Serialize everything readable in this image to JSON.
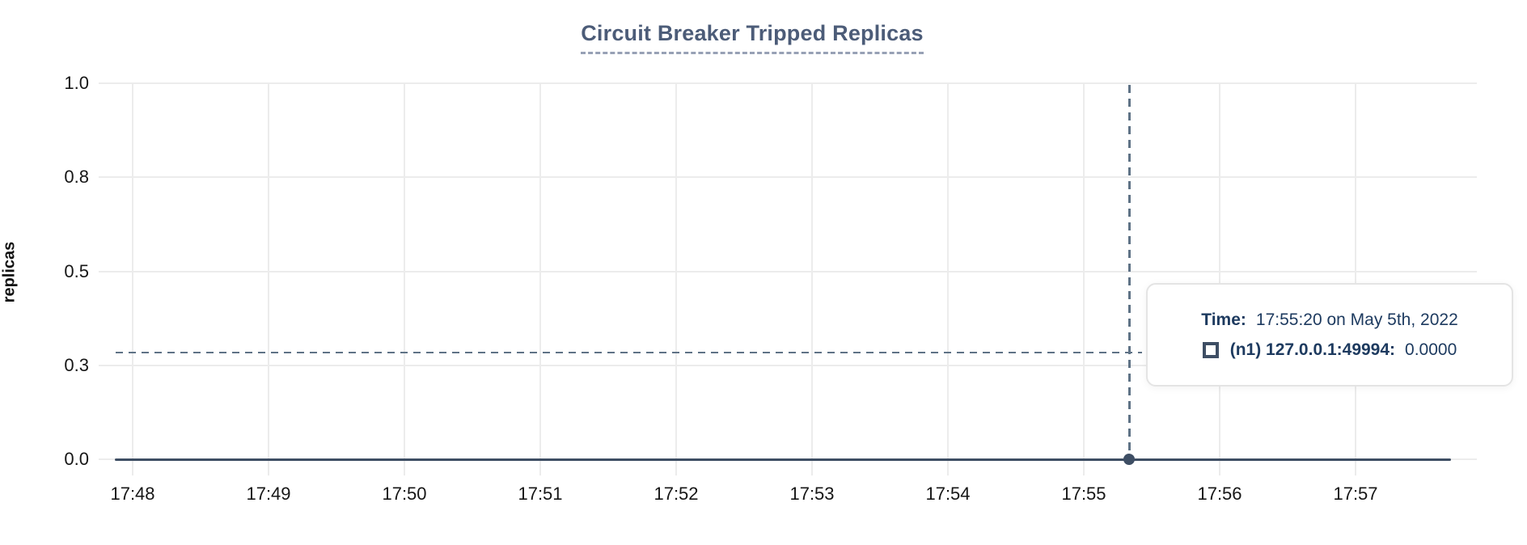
{
  "colors": {
    "title": "#4c5c78",
    "title_underline": "#97a1b5",
    "gridline": "#ececec",
    "tick_label": "#161616",
    "series": "#3e4e64",
    "crosshair": "#5f7386",
    "tooltip_text": "#1d3a5f",
    "tooltip_border": "#e4e4e4",
    "background": "#ffffff"
  },
  "chart_data": {
    "type": "line",
    "title": "Circuit Breaker Tripped Replicas",
    "xlabel": "",
    "ylabel": "replicas",
    "ylim": [
      0,
      1
    ],
    "grid": true,
    "legend_position": "tooltip-overlay",
    "x_ticks": [
      "17:48",
      "17:49",
      "17:50",
      "17:51",
      "17:52",
      "17:53",
      "17:54",
      "17:55",
      "17:56",
      "17:57"
    ],
    "y_ticks": [
      "1.0",
      "0.8",
      "0.5",
      "0.3",
      "0.0"
    ],
    "y_tick_values": [
      1.0,
      0.75,
      0.5,
      0.25,
      0.0
    ],
    "series": [
      {
        "name": "(n1) 127.0.0.1:49994",
        "color": "#3e4e64",
        "points": [
          {
            "time": "17:47:52",
            "value": 0
          },
          {
            "time": "17:57:42",
            "value": 0
          }
        ]
      }
    ],
    "cursor": {
      "time": "17:55:20",
      "hover_value_fraction": 0.284,
      "highlighted_point": {
        "series": "(n1) 127.0.0.1:49994",
        "time": "17:55:20",
        "value": 0.0
      }
    }
  },
  "tooltip": {
    "time_label": "Time:",
    "time_value": "17:55:20 on May 5th, 2022",
    "series_label": "(n1) 127.0.0.1:49994:",
    "series_value": "0.0000"
  }
}
